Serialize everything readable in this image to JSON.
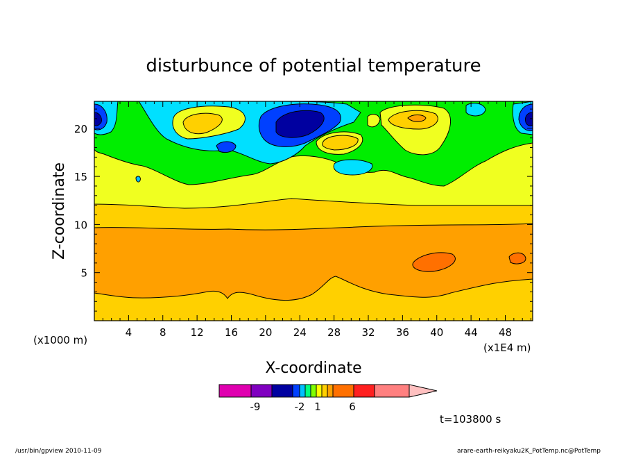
{
  "chart_data": {
    "type": "heatmap",
    "title": "disturbunce of potential temperature",
    "xlabel": "X-coordinate",
    "ylabel": "Z-coordinate",
    "x_unit_label": "(x1000 m)",
    "x_unit_label_right": "(x1E4 m)",
    "xlim": [
      0,
      51.2
    ],
    "ylim": [
      0,
      22.8
    ],
    "xticks": [
      "4",
      "8",
      "12",
      "16",
      "20",
      "24",
      "28",
      "32",
      "36",
      "40",
      "44",
      "48"
    ],
    "yticks": [
      "5",
      "10",
      "15",
      "20"
    ],
    "time_label": "t=103800 s",
    "colorbar": {
      "labels": [
        "-9",
        "-2",
        "1",
        "6"
      ],
      "colors": [
        "#e000b0",
        "#8000c0",
        "#0000a0",
        "#0040ff",
        "#00c0ff",
        "#00ff80",
        "#80ff00",
        "#ffff00",
        "#ffd000",
        "#ffa000",
        "#ff7000",
        "#ff2020",
        "#ff8080",
        "#ffc0c0"
      ]
    },
    "bands": [
      {
        "z_range": [
          0,
          2.5
        ],
        "value": "1 to 3",
        "color": "#ffd000"
      },
      {
        "z_range": [
          2.5,
          9.5
        ],
        "value": "3 to 4",
        "color": "#ffa000"
      },
      {
        "z_range": [
          9.5,
          12.3
        ],
        "value": "1 to 3",
        "color": "#ffd000"
      },
      {
        "z_range": [
          12.3,
          17
        ],
        "value": "0 to 1",
        "color": "#f0ff20"
      },
      {
        "z_range": [
          17,
          20
        ],
        "value": "-1 to 0",
        "color": "#00ee00"
      },
      {
        "z_range": [
          20,
          22.8
        ],
        "value": "mixed -6 to 3",
        "color": "#00e0ff"
      }
    ]
  },
  "footer": {
    "left": "/usr/bin/gpview   2010-11-09",
    "right": "arare-earth-reikyaku2K_PotTemp.nc@PotTemp"
  }
}
